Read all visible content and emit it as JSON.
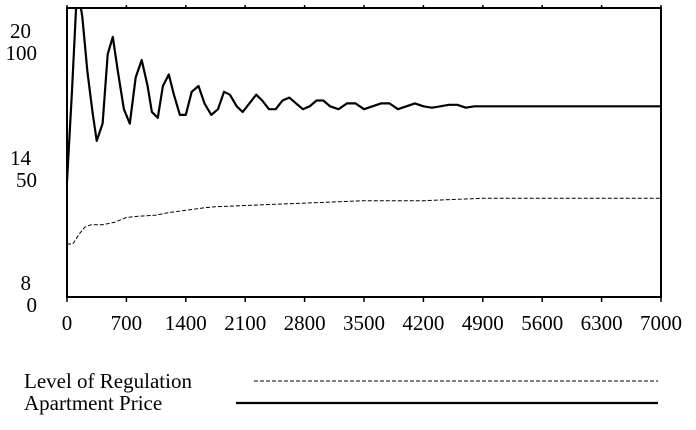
{
  "chart_data": {
    "type": "line",
    "x_ticks": [
      "0",
      "700",
      "1400",
      "2100",
      "2800",
      "3500",
      "4200",
      "4900",
      "5600",
      "6300",
      "7000"
    ],
    "xlim": [
      0,
      7000
    ],
    "left_axis_labels": {
      "stack_a": [
        "20",
        "14",
        "8"
      ],
      "stack_b": [
        "100",
        "50",
        "0"
      ]
    },
    "axes": {
      "regulation": {
        "ylim": [
          8,
          20
        ],
        "ticks": [
          8,
          14,
          20
        ]
      },
      "price": {
        "ylim": [
          0,
          100
        ],
        "ticks": [
          0,
          50,
          100
        ]
      }
    },
    "grid": false,
    "legend_position": "bottom-left",
    "series": [
      {
        "name": "Level of Regulation",
        "axis": "regulation",
        "line_style": "dashed",
        "color": "#000000",
        "x": [
          0,
          70,
          140,
          210,
          280,
          350,
          420,
          560,
          700,
          840,
          1050,
          1190,
          1400,
          1610,
          1750,
          2100,
          2450,
          2800,
          3150,
          3500,
          3850,
          4200,
          4550,
          4900,
          5250,
          5600,
          5950,
          6300,
          7000
        ],
        "values": [
          10.2,
          10.2,
          10.6,
          10.9,
          11.0,
          11.0,
          11.0,
          11.1,
          11.3,
          11.35,
          11.4,
          11.5,
          11.6,
          11.7,
          11.75,
          11.8,
          11.85,
          11.9,
          11.95,
          12.0,
          12.0,
          12.0,
          12.05,
          12.1,
          12.1,
          12.1,
          12.1,
          12.1,
          12.1
        ]
      },
      {
        "name": "Apartment Price",
        "axis": "price",
        "line_style": "solid",
        "color": "#000000",
        "x": [
          0,
          60,
          120,
          180,
          240,
          300,
          350,
          420,
          480,
          540,
          600,
          670,
          740,
          810,
          880,
          950,
          1000,
          1070,
          1130,
          1200,
          1260,
          1330,
          1400,
          1470,
          1550,
          1620,
          1700,
          1780,
          1850,
          1920,
          2000,
          2070,
          2150,
          2230,
          2300,
          2380,
          2460,
          2540,
          2620,
          2700,
          2780,
          2860,
          2940,
          3020,
          3100,
          3200,
          3300,
          3400,
          3500,
          3600,
          3700,
          3800,
          3900,
          4000,
          4100,
          4200,
          4300,
          4400,
          4500,
          4600,
          4700,
          4800,
          4900,
          5000,
          5200,
          5500,
          6000,
          6500,
          7000
        ],
        "values": [
          40,
          72,
          108,
          97,
          78,
          64,
          54,
          60,
          84,
          90,
          78,
          65,
          60,
          76,
          82,
          73,
          64,
          62,
          73,
          77,
          70,
          63,
          63,
          71,
          73,
          67,
          63,
          65,
          71,
          70,
          66,
          64,
          67,
          70,
          68,
          65,
          65,
          68,
          69,
          67,
          65,
          66,
          68,
          68,
          66,
          65,
          67,
          67,
          65,
          66,
          67,
          67,
          65,
          66,
          67,
          66,
          65.5,
          66,
          66.5,
          66.5,
          65.5,
          66,
          66,
          66,
          66,
          66,
          66,
          66,
          66
        ]
      }
    ]
  }
}
